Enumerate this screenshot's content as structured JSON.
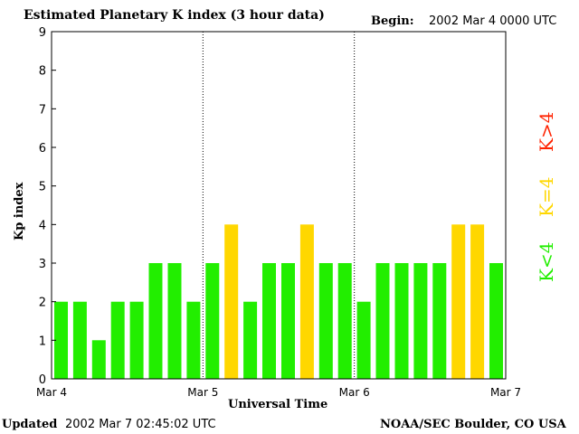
{
  "header": {
    "title": "Estimated Planetary K index (3 hour data)",
    "begin_label": "Begin:",
    "begin_value": "2002 Mar 4 0000 UTC"
  },
  "footer": {
    "updated_label": "Updated",
    "updated_value": "2002 Mar  7 02:45:02 UTC",
    "org": "NOAA/SEC Boulder, CO USA"
  },
  "legend": {
    "below": "K<4",
    "equal": "K=4",
    "above": "K>4"
  },
  "colors": {
    "below": "#22ee00",
    "equal": "#ffd700",
    "above": "#ff2200"
  },
  "chart_data": {
    "type": "bar",
    "title": "Estimated Planetary K index (3 hour data)",
    "xlabel": "Universal Time",
    "ylabel": "Kp index",
    "ylim": [
      0,
      9
    ],
    "yticks": [
      0,
      1,
      2,
      3,
      4,
      5,
      6,
      7,
      8,
      9
    ],
    "xtick_labels": [
      "Mar 4",
      "Mar 5",
      "Mar 6",
      "Mar 7"
    ],
    "day_separators": true,
    "values": [
      2,
      2,
      1,
      2,
      2,
      3,
      3,
      2,
      3,
      4,
      2,
      3,
      3,
      4,
      3,
      3,
      2,
      3,
      3,
      3,
      3,
      4,
      4,
      3
    ]
  }
}
